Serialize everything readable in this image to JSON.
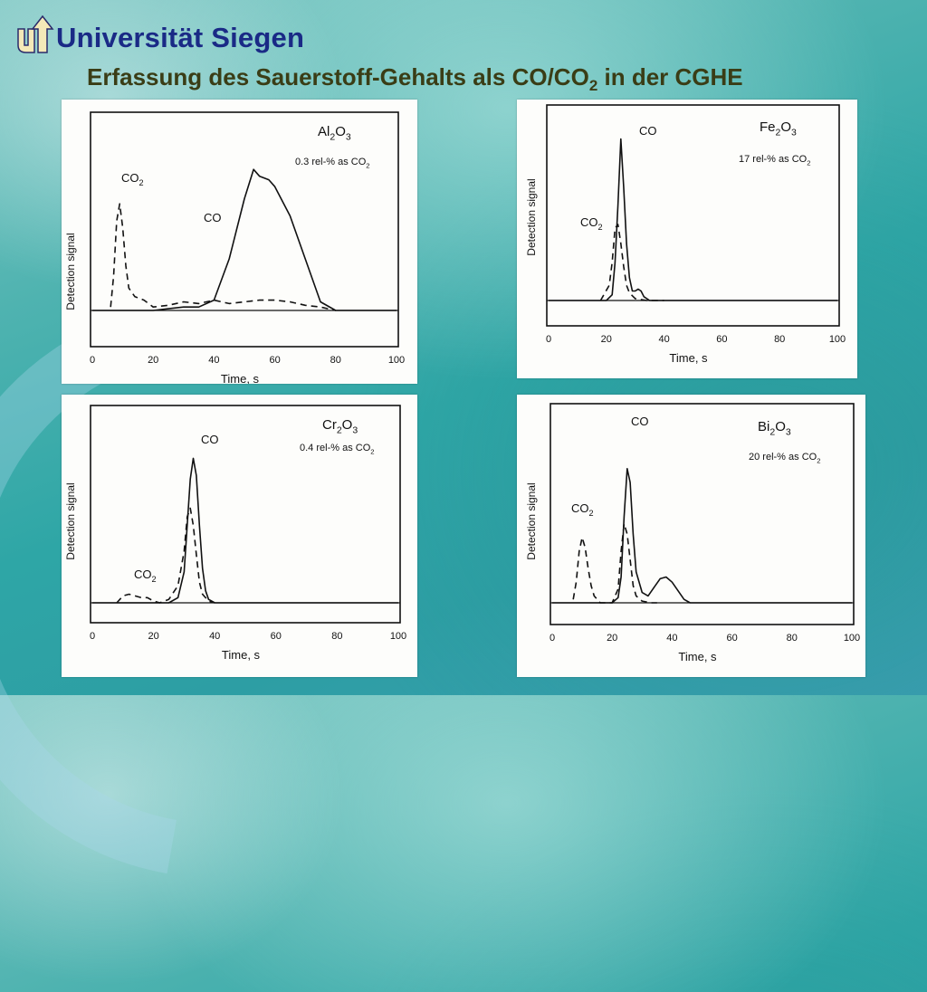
{
  "slide": {
    "institution": "Universität Siegen",
    "heading_main": "Erfassung des Sauerstoff-Gehalts als CO/CO",
    "heading_sub": "2",
    "heading_tail": " in der CGHE"
  },
  "colors": {
    "title": "#1a2a86",
    "subtitle": "#3a3d16",
    "ink": "#111111",
    "panel": "#fdfdfb"
  },
  "chart_data": [
    {
      "type": "line",
      "title": "Al2O3",
      "note": "0.3 rel-% as CO2",
      "xlabel": "Time, s",
      "ylabel": "Detection signal",
      "xlim": [
        0,
        100
      ],
      "xticks": [
        0,
        20,
        40,
        60,
        80,
        100
      ],
      "series": [
        {
          "name": "CO",
          "style": "solid",
          "x": [
            0,
            10,
            20,
            25,
            30,
            35,
            40,
            45,
            50,
            53,
            55,
            58,
            60,
            65,
            70,
            75,
            80,
            100
          ],
          "y": [
            0,
            0,
            0,
            0.01,
            0.02,
            0.02,
            0.06,
            0.3,
            0.65,
            0.82,
            0.78,
            0.76,
            0.72,
            0.55,
            0.3,
            0.05,
            0,
            0
          ]
        },
        {
          "name": "CO2",
          "style": "dashed",
          "x": [
            6,
            7,
            8,
            9,
            10,
            11,
            12,
            14,
            17,
            20,
            25,
            30,
            35,
            40,
            45,
            50,
            55,
            60,
            65,
            70,
            75,
            80
          ],
          "y": [
            0.02,
            0.2,
            0.52,
            0.62,
            0.48,
            0.26,
            0.13,
            0.08,
            0.06,
            0.02,
            0.03,
            0.05,
            0.04,
            0.06,
            0.04,
            0.05,
            0.06,
            0.06,
            0.05,
            0.03,
            0.02,
            0
          ]
        }
      ]
    },
    {
      "type": "line",
      "title": "Fe2O3",
      "note": "17 rel-% as CO2",
      "xlabel": "Time, s",
      "ylabel": "",
      "xlim": [
        0,
        100
      ],
      "xticks": [
        0,
        20,
        40,
        60,
        80,
        100
      ],
      "series": [
        {
          "name": "CO",
          "style": "solid",
          "x": [
            0,
            20,
            22,
            23,
            24,
            25,
            26,
            27,
            28,
            29,
            30,
            31,
            32,
            33,
            35,
            40,
            100
          ],
          "y": [
            0,
            0,
            0.03,
            0.2,
            0.5,
            0.85,
            0.6,
            0.3,
            0.12,
            0.05,
            0.05,
            0.06,
            0.05,
            0.02,
            0,
            0,
            0
          ]
        },
        {
          "name": "CO2",
          "style": "dashed",
          "x": [
            18,
            21,
            22,
            23,
            24,
            25,
            26,
            27,
            28,
            30,
            34,
            40
          ],
          "y": [
            0,
            0.08,
            0.2,
            0.38,
            0.4,
            0.3,
            0.18,
            0.08,
            0.04,
            0.01,
            0,
            0
          ]
        }
      ]
    },
    {
      "type": "line",
      "title": "Cr2O3",
      "note": "0.4 rel-% as CO2",
      "xlabel": "Time, s",
      "ylabel": "",
      "xlim": [
        0,
        100
      ],
      "xticks": [
        0,
        20,
        40,
        60,
        80,
        100
      ],
      "series": [
        {
          "name": "CO",
          "style": "solid",
          "x": [
            0,
            25,
            28,
            30,
            31,
            32,
            33,
            34,
            35,
            36,
            37,
            38,
            40,
            42,
            100
          ],
          "y": [
            0,
            0,
            0.03,
            0.18,
            0.45,
            0.72,
            0.84,
            0.74,
            0.45,
            0.2,
            0.07,
            0.02,
            0,
            0,
            0
          ]
        },
        {
          "name": "CO2",
          "style": "dashed",
          "x": [
            8,
            10,
            12,
            14,
            16,
            18,
            20,
            22,
            25,
            28,
            30,
            31,
            32,
            33,
            34,
            35,
            36,
            38,
            40
          ],
          "y": [
            0,
            0.04,
            0.05,
            0.04,
            0.03,
            0.03,
            0.01,
            0,
            0.02,
            0.1,
            0.3,
            0.5,
            0.55,
            0.45,
            0.28,
            0.12,
            0.05,
            0.01,
            0
          ]
        }
      ]
    },
    {
      "type": "line",
      "title": "Bi2O3",
      "note": "20 rel-% as CO2",
      "xlabel": "Time, s",
      "ylabel": "Detection signal",
      "xlim": [
        0,
        100
      ],
      "xticks": [
        0,
        20,
        40,
        60,
        80,
        100
      ],
      "series": [
        {
          "name": "CO",
          "style": "solid",
          "x": [
            0,
            20,
            22,
            23,
            24,
            25,
            26,
            27,
            28,
            30,
            32,
            34,
            36,
            38,
            40,
            42,
            44,
            46,
            48,
            100
          ],
          "y": [
            0,
            0,
            0.03,
            0.15,
            0.5,
            0.78,
            0.7,
            0.4,
            0.18,
            0.06,
            0.04,
            0.09,
            0.14,
            0.15,
            0.12,
            0.07,
            0.02,
            0,
            0,
            0
          ]
        },
        {
          "name": "CO2",
          "style": "dashed",
          "x": [
            7,
            8,
            9,
            10,
            11,
            12,
            13,
            14,
            16,
            18,
            20,
            22,
            23,
            24,
            25,
            26,
            27,
            28,
            30,
            33,
            35
          ],
          "y": [
            0.02,
            0.12,
            0.3,
            0.38,
            0.32,
            0.2,
            0.1,
            0.04,
            0,
            0,
            0,
            0.08,
            0.3,
            0.46,
            0.4,
            0.25,
            0.1,
            0.04,
            0.01,
            0,
            0
          ]
        }
      ]
    }
  ],
  "panel_labels": [
    {
      "series_co": "CO",
      "series_co2_base": "CO",
      "series_co2_sub": "2",
      "title_parts": [
        "Al",
        "2",
        "O",
        "3"
      ],
      "note_base": "0.3 rel-% as CO",
      "note_sub": "2",
      "ylabel": "Detection signal"
    },
    {
      "series_co": "CO",
      "series_co2_base": "CO",
      "series_co2_sub": "2",
      "title_parts": [
        "Fe",
        "2",
        "O",
        "3"
      ],
      "note_base": "17 rel-% as CO",
      "note_sub": "2",
      "ylabel": "Detection signal"
    },
    {
      "series_co": "CO",
      "series_co2_base": "CO",
      "series_co2_sub": "2",
      "title_parts": [
        "Cr",
        "2",
        "O",
        "3"
      ],
      "note_base": "0.4 rel-% as CO",
      "note_sub": "2",
      "ylabel": "Detection signal"
    },
    {
      "series_co": "CO",
      "series_co2_base": "CO",
      "series_co2_sub": "2",
      "title_parts": [
        "Bi",
        "2",
        "O",
        "3"
      ],
      "note_base": "20 rel-% as CO",
      "note_sub": "2",
      "ylabel": "Detection signal"
    }
  ]
}
